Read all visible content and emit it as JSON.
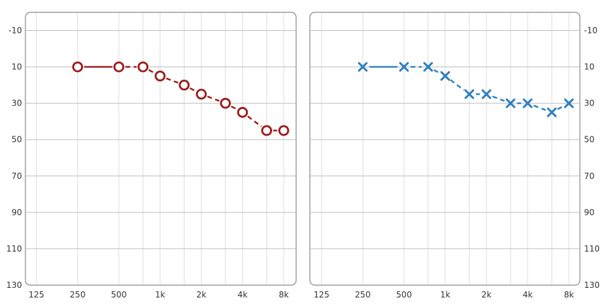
{
  "chart_data": [
    {
      "type": "line",
      "panel": "left",
      "x_ticks": [
        "125",
        "250",
        "500",
        "1k",
        "2k",
        "4k",
        "8k"
      ],
      "y_ticks": [
        "-10",
        "10",
        "30",
        "50",
        "70",
        "90",
        "110",
        "130"
      ],
      "ylim": [
        130,
        -20
      ],
      "y_axis_side": "left",
      "marker": "circle",
      "color": "#9b1c1c",
      "points": [
        {
          "x": 250,
          "y": 10
        },
        {
          "x": 500,
          "y": 10
        },
        {
          "x": 750,
          "y": 10
        },
        {
          "x": 1000,
          "y": 15
        },
        {
          "x": 1500,
          "y": 20
        },
        {
          "x": 2000,
          "y": 25
        },
        {
          "x": 3000,
          "y": 30
        },
        {
          "x": 4000,
          "y": 35
        },
        {
          "x": 6000,
          "y": 45
        },
        {
          "x": 8000,
          "y": 45
        }
      ],
      "grid": true
    },
    {
      "type": "line",
      "panel": "right",
      "x_ticks": [
        "125",
        "250",
        "500",
        "1k",
        "2k",
        "4k",
        "8k"
      ],
      "y_ticks": [
        "-10",
        "10",
        "30",
        "50",
        "70",
        "90",
        "110",
        "130"
      ],
      "ylim": [
        130,
        -20
      ],
      "y_axis_side": "right",
      "marker": "x",
      "color": "#2f7fc1",
      "points": [
        {
          "x": 250,
          "y": 10
        },
        {
          "x": 500,
          "y": 10
        },
        {
          "x": 750,
          "y": 10
        },
        {
          "x": 1000,
          "y": 15
        },
        {
          "x": 1500,
          "y": 25
        },
        {
          "x": 2000,
          "y": 25
        },
        {
          "x": 3000,
          "y": 30
        },
        {
          "x": 4000,
          "y": 30
        },
        {
          "x": 6000,
          "y": 35
        },
        {
          "x": 8000,
          "y": 30
        }
      ],
      "grid": true
    }
  ]
}
